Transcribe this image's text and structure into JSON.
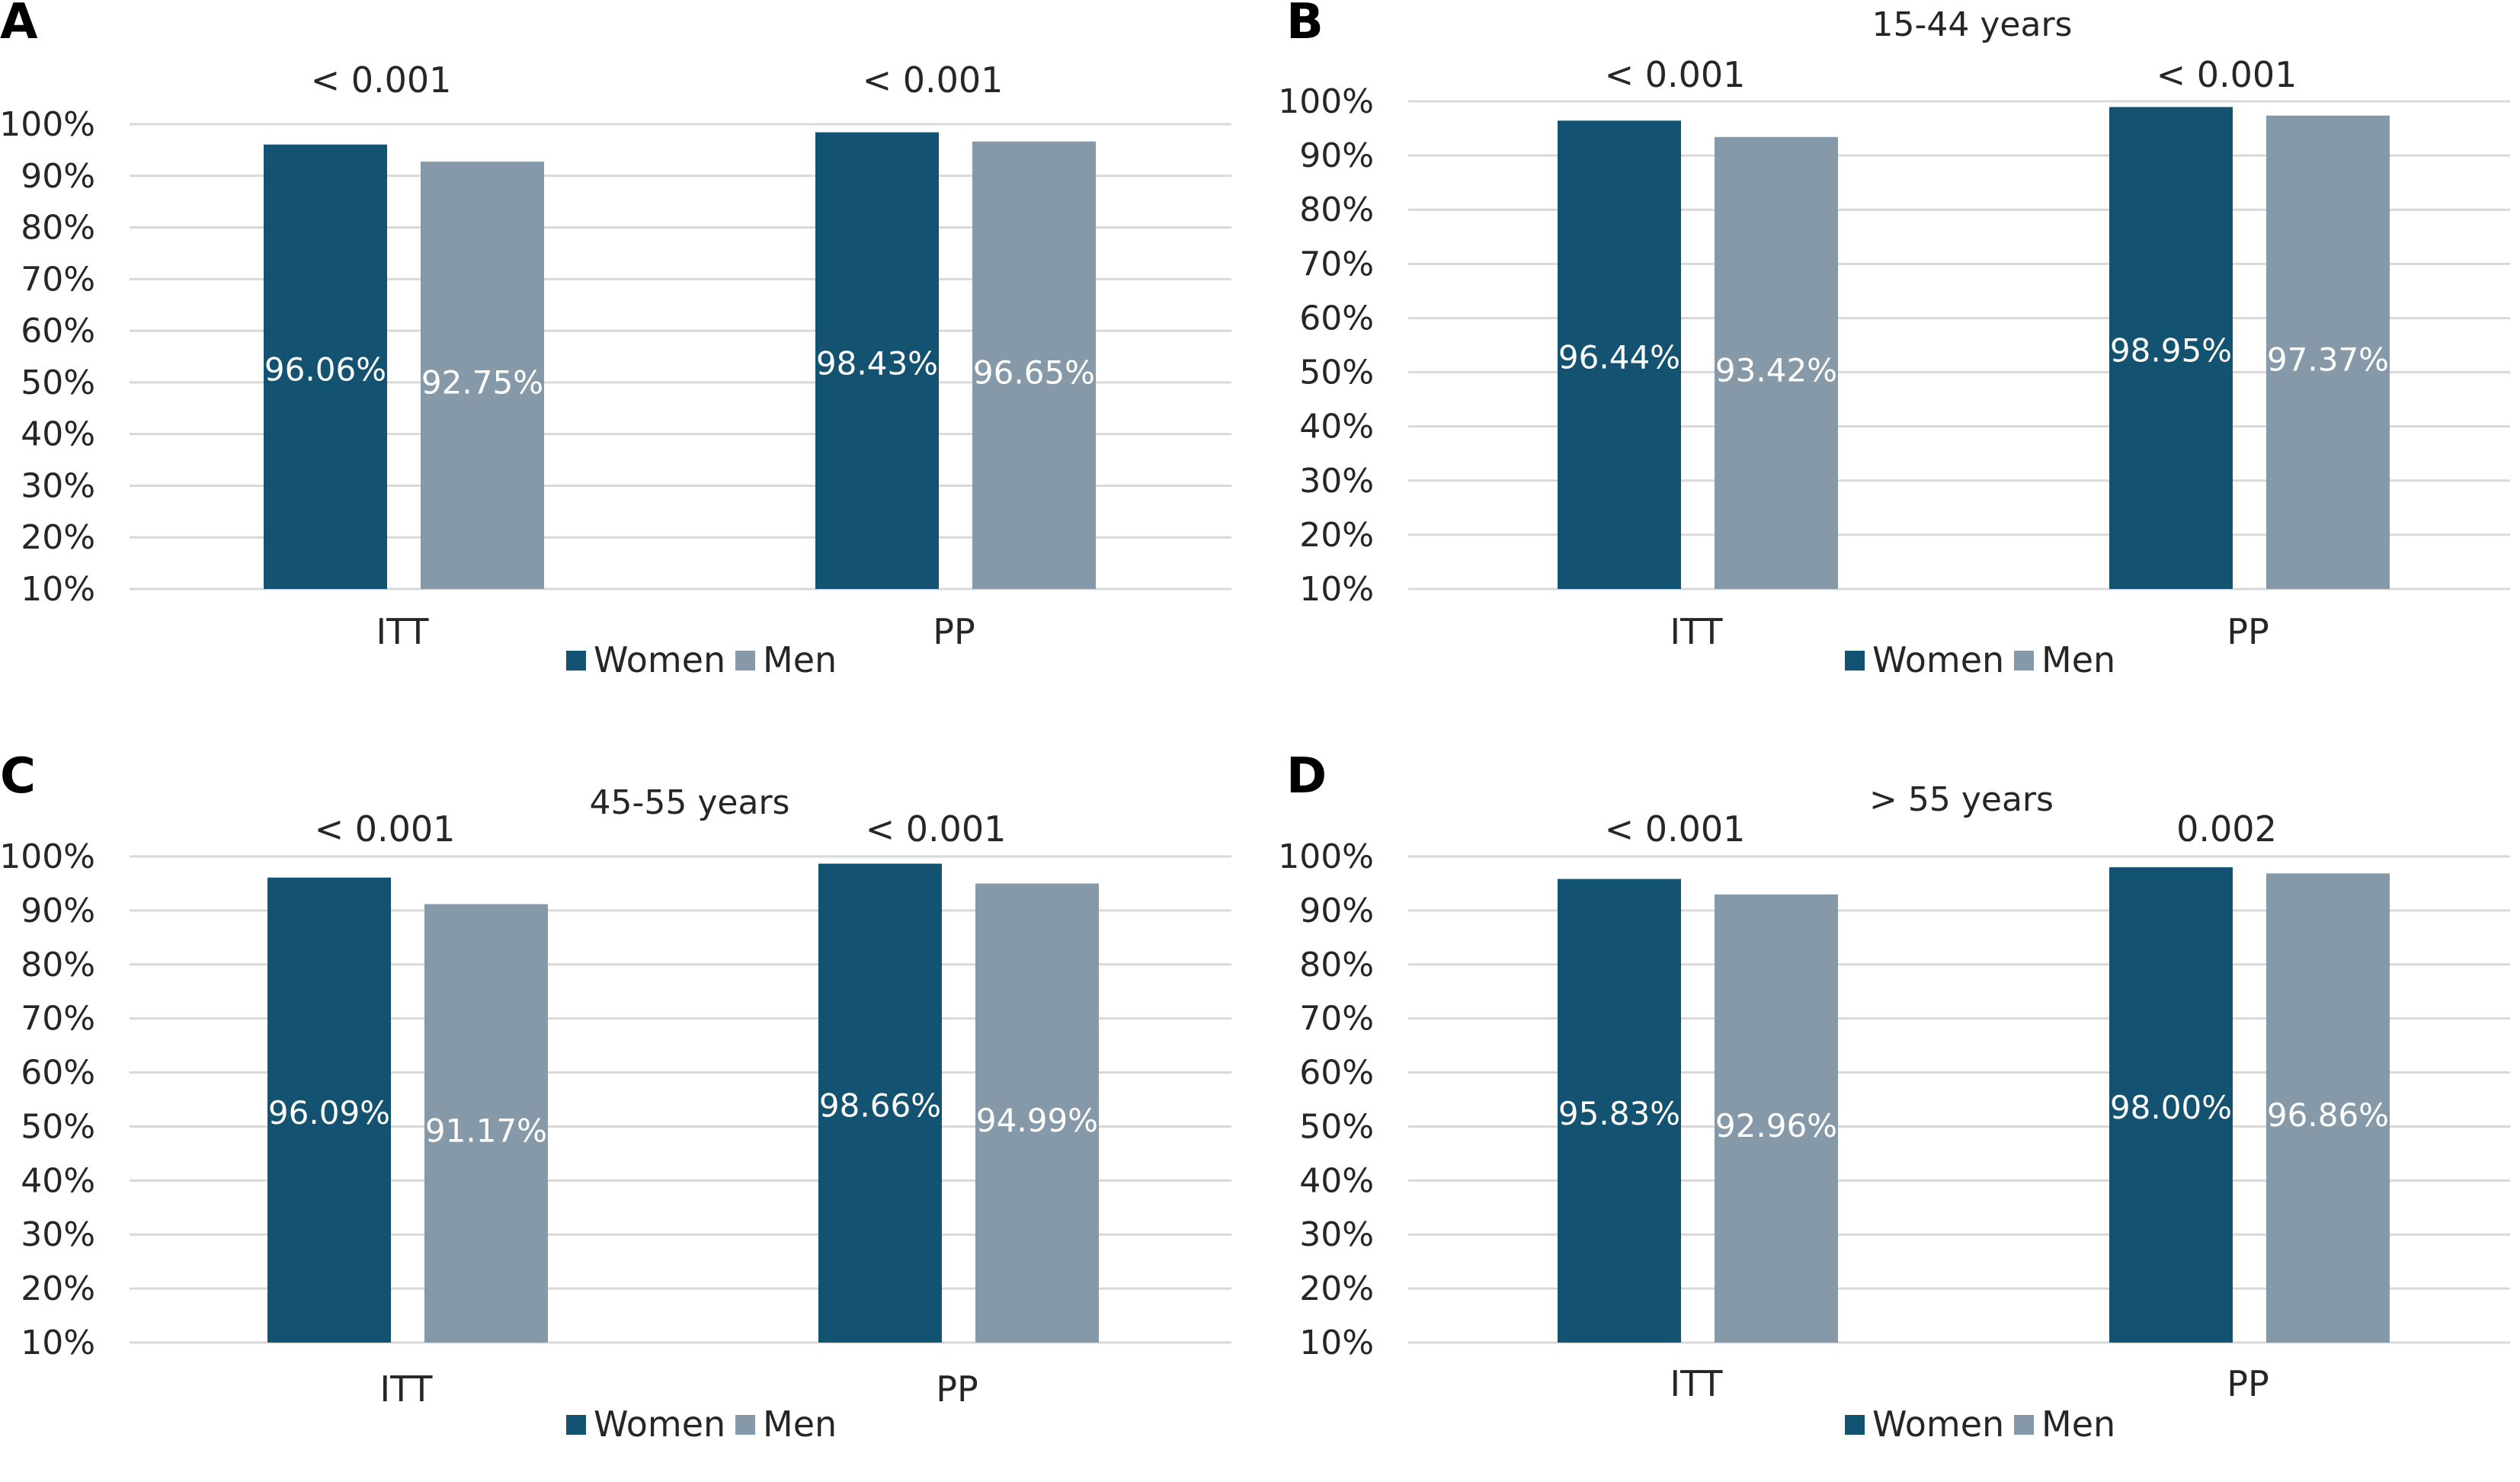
{
  "chart_data": [
    {
      "type": "bar",
      "panel": "A",
      "title": "",
      "categories": [
        "ITT",
        "PP"
      ],
      "series": [
        {
          "name": "Women",
          "values": [
            96.06,
            98.43
          ],
          "labels": [
            "96.06%",
            "98.43%"
          ]
        },
        {
          "name": "Men",
          "values": [
            92.75,
            96.65
          ],
          "labels": [
            "92.75%",
            "96.65%"
          ]
        }
      ],
      "p_values": [
        "< 0.001",
        "< 0.001"
      ],
      "yticks": [
        "10%",
        "20%",
        "30%",
        "40%",
        "50%",
        "60%",
        "70%",
        "80%",
        "90%",
        "100%"
      ],
      "ylim": [
        10,
        100
      ],
      "grid": true,
      "legend": "bottom"
    },
    {
      "type": "bar",
      "panel": "B",
      "title": "15-44 years",
      "categories": [
        "ITT",
        "PP"
      ],
      "series": [
        {
          "name": "Women",
          "values": [
            96.44,
            98.95
          ],
          "labels": [
            "96.44%",
            "98.95%"
          ]
        },
        {
          "name": "Men",
          "values": [
            93.42,
            97.37
          ],
          "labels": [
            "93.42%",
            "97.37%"
          ]
        }
      ],
      "p_values": [
        "< 0.001",
        "< 0.001"
      ],
      "yticks": [
        "10%",
        "20%",
        "30%",
        "40%",
        "50%",
        "60%",
        "70%",
        "80%",
        "90%",
        "100%"
      ],
      "ylim": [
        10,
        100
      ],
      "grid": true,
      "legend": "bottom"
    },
    {
      "type": "bar",
      "panel": "C",
      "title": "45-55 years",
      "categories": [
        "ITT",
        "PP"
      ],
      "series": [
        {
          "name": "Women",
          "values": [
            96.09,
            98.66
          ],
          "labels": [
            "96.09%",
            "98.66%"
          ]
        },
        {
          "name": "Men",
          "values": [
            91.17,
            94.99
          ],
          "labels": [
            "91.17%",
            "94.99%"
          ]
        }
      ],
      "p_values": [
        "< 0.001",
        "< 0.001"
      ],
      "yticks": [
        "10%",
        "20%",
        "30%",
        "40%",
        "50%",
        "60%",
        "70%",
        "80%",
        "90%",
        "100%"
      ],
      "ylim": [
        10,
        100
      ],
      "grid": true,
      "legend": "bottom"
    },
    {
      "type": "bar",
      "panel": "D",
      "title": "> 55 years",
      "categories": [
        "ITT",
        "PP"
      ],
      "series": [
        {
          "name": "Women",
          "values": [
            95.83,
            98.0
          ],
          "labels": [
            "95.83%",
            "98.00%"
          ]
        },
        {
          "name": "Men",
          "values": [
            92.96,
            96.86
          ],
          "labels": [
            "92.96%",
            "96.86%"
          ]
        }
      ],
      "p_values": [
        "< 0.001",
        "0.002"
      ],
      "yticks": [
        "10%",
        "20%",
        "30%",
        "40%",
        "50%",
        "60%",
        "70%",
        "80%",
        "90%",
        "100%"
      ],
      "ylim": [
        10,
        100
      ],
      "grid": true,
      "legend": "bottom"
    }
  ],
  "colors": {
    "women": "#135270",
    "men": "#8699a9",
    "grid": "#d9d9d9",
    "text": "#262626"
  }
}
